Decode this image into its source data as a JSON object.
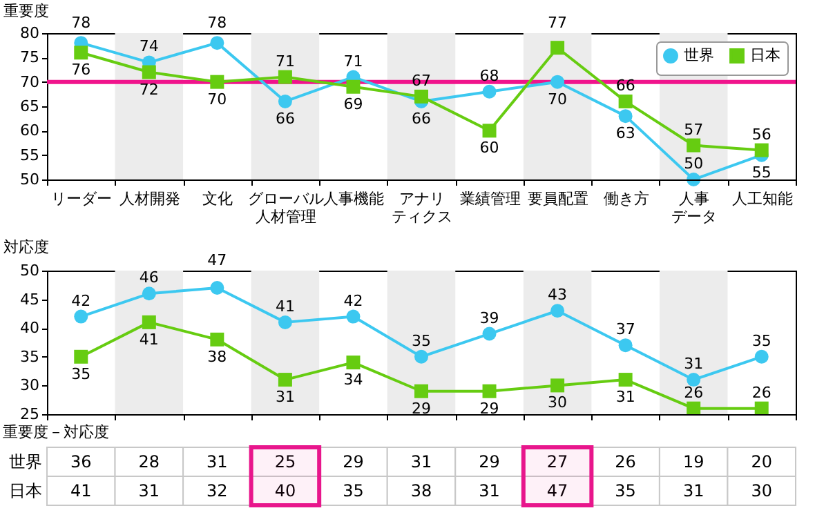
{
  "chart_data": [
    {
      "type": "line",
      "ylabel": "重要度",
      "categories": [
        "リーダー",
        "人材開発",
        "文化",
        "グローバル人材管理",
        "人事機能",
        "アナリティクス",
        "業績管理",
        "要員配置",
        "働き方",
        "人事データ",
        "人工知能"
      ],
      "ylim": [
        50,
        80
      ],
      "yticks": [
        50,
        55,
        60,
        65,
        70,
        75,
        80
      ],
      "series": [
        {
          "name": "世界",
          "color": "#3cc8f0",
          "marker": "circle",
          "values": [
            78,
            74,
            78,
            66,
            71,
            66,
            68,
            70,
            63,
            50,
            55
          ]
        },
        {
          "name": "日本",
          "color": "#66cc11",
          "marker": "square",
          "values": [
            76,
            72,
            70,
            71,
            69,
            67,
            60,
            77,
            66,
            57,
            56
          ]
        }
      ],
      "data_labels": true,
      "legend": "top right",
      "ref_lines": [
        {
          "axis": "y",
          "value": 70,
          "color": "#f0148c"
        }
      ],
      "bands": [
        {
          "axis": "x",
          "from": "人材開発",
          "to": "人材開発",
          "color": "#ececec"
        },
        {
          "axis": "x",
          "from": "グローバル人材管理",
          "to": "グローバル人材管理",
          "color": "#ececec"
        },
        {
          "axis": "x",
          "from": "アナリティクス",
          "to": "アナリティクス",
          "color": "#ececec"
        },
        {
          "axis": "x",
          "from": "要員配置",
          "to": "要員配置",
          "color": "#ececec"
        },
        {
          "axis": "x",
          "from": "人事データ",
          "to": "人事データ",
          "color": "#ececec"
        }
      ]
    },
    {
      "type": "line",
      "ylabel": "対応度",
      "categories": [
        "リーダー",
        "人材開発",
        "文化",
        "グローバル人材管理",
        "人事機能",
        "アナリティクス",
        "業績管理",
        "要員配置",
        "働き方",
        "人事データ",
        "人工知能"
      ],
      "ylim": [
        25,
        50
      ],
      "yticks": [
        25,
        30,
        35,
        40,
        45,
        50
      ],
      "tick_labels": "y",
      "series": [
        {
          "name": "世界",
          "color": "#3cc8f0",
          "marker": "circle",
          "values": [
            42,
            46,
            47,
            41,
            42,
            35,
            39,
            43,
            37,
            31,
            35
          ]
        },
        {
          "name": "日本",
          "color": "#66cc11",
          "marker": "square",
          "values": [
            35,
            41,
            38,
            31,
            34,
            29,
            29,
            30,
            31,
            26,
            26
          ]
        }
      ],
      "data_labels": true,
      "bands": [
        {
          "axis": "x",
          "from": "人材開発",
          "to": "人材開発",
          "color": "#ececec"
        },
        {
          "axis": "x",
          "from": "グローバル人材管理",
          "to": "グローバル人材管理",
          "color": "#ececec"
        },
        {
          "axis": "x",
          "from": "アナリティクス",
          "to": "アナリティクス",
          "color": "#ececec"
        },
        {
          "axis": "x",
          "from": "要員配置",
          "to": "要員配置",
          "color": "#ececec"
        },
        {
          "axis": "x",
          "from": "人事データ",
          "to": "人事データ",
          "color": "#ececec"
        }
      ]
    },
    {
      "type": "heatmap",
      "title": "重要度－対応度",
      "categories": [
        "リーダー",
        "人材開発",
        "文化",
        "グローバル人材管理",
        "人事機能",
        "アナリティクス",
        "業績管理",
        "要員配置",
        "働き方",
        "人事データ",
        "人工知能"
      ],
      "y_categories": [
        "世界",
        "日本"
      ],
      "tick_labels": "y",
      "cells": [
        [
          36,
          28,
          31,
          25,
          29,
          31,
          29,
          27,
          26,
          19,
          20
        ],
        [
          41,
          31,
          32,
          40,
          35,
          38,
          31,
          47,
          35,
          31,
          30
        ]
      ],
      "data_labels": true,
      "bands": [
        {
          "axis": "x",
          "from": "グローバル人材管理",
          "to": "グローバル人材管理",
          "color": "#e8168c"
        },
        {
          "axis": "x",
          "from": "要員配置",
          "to": "要員配置",
          "color": "#e8168c"
        }
      ]
    }
  ]
}
